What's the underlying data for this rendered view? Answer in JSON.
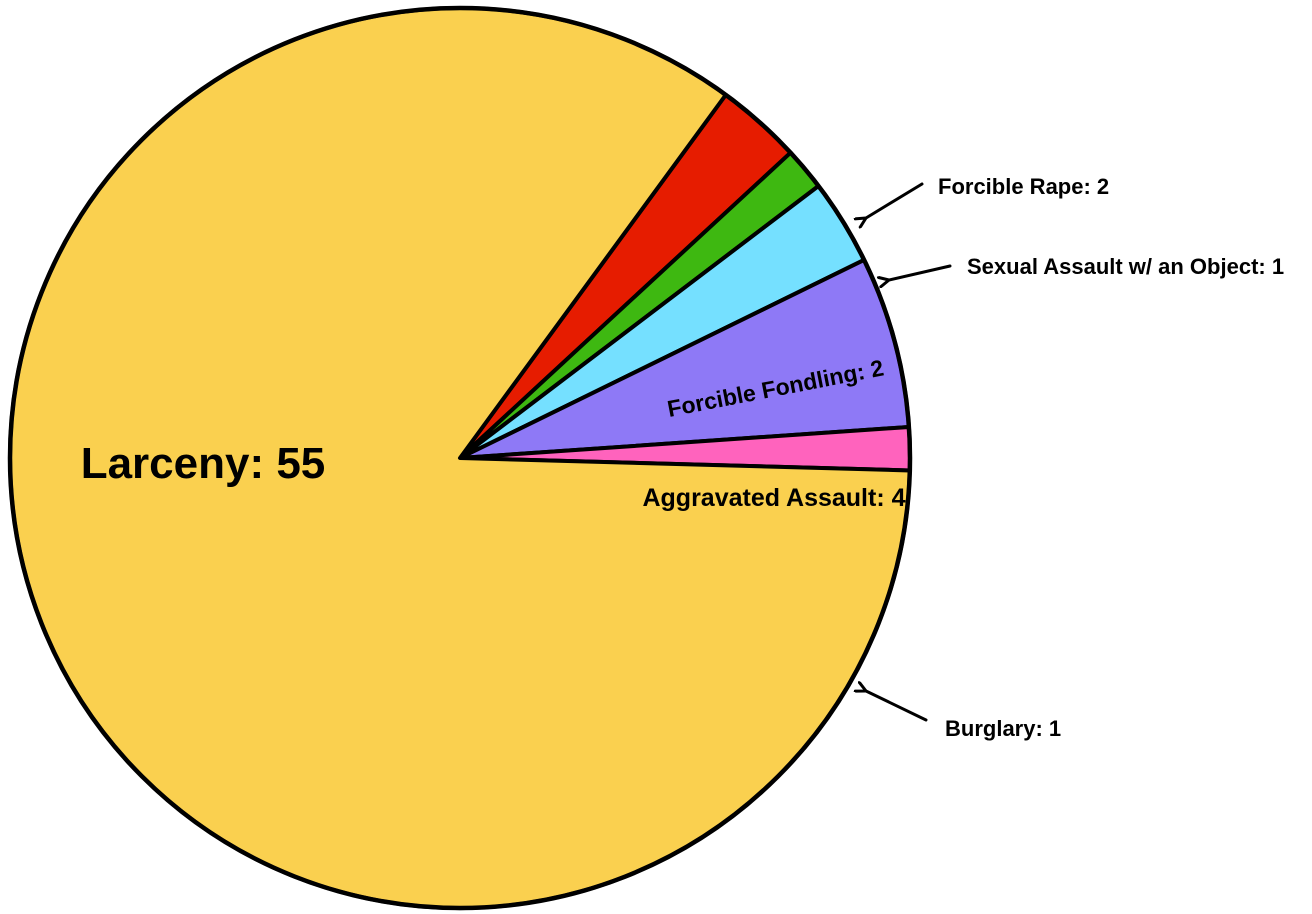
{
  "chart_data": {
    "type": "pie",
    "title": "",
    "start_angle_deg": 36.2,
    "direction": "clockwise",
    "slices": [
      {
        "label": "Forcible Rape",
        "value": 2,
        "color": "#E61C00",
        "text": "Forcible Rape: 2",
        "label_style": "callout"
      },
      {
        "label": "Sexual Assault w/ an Object",
        "value": 1,
        "color": "#3EB811",
        "text": "Sexual Assault w/ an Object: 1",
        "label_style": "callout"
      },
      {
        "label": "Forcible Fondling",
        "value": 2,
        "color": "#75E0FF",
        "text": "Forcible Fondling: 2",
        "label_style": "inside-rotated"
      },
      {
        "label": "Aggravated Assault",
        "value": 4,
        "color": "#8E79F6",
        "text": "Aggravated Assault: 4",
        "label_style": "inside"
      },
      {
        "label": "Burglary",
        "value": 1,
        "color": "#FF63BD",
        "text": "Burglary: 1",
        "label_style": "callout"
      },
      {
        "label": "Larceny",
        "value": 55,
        "color": "#FAD04F",
        "text": "Larceny: 55",
        "label_style": "inside-large"
      }
    ]
  }
}
